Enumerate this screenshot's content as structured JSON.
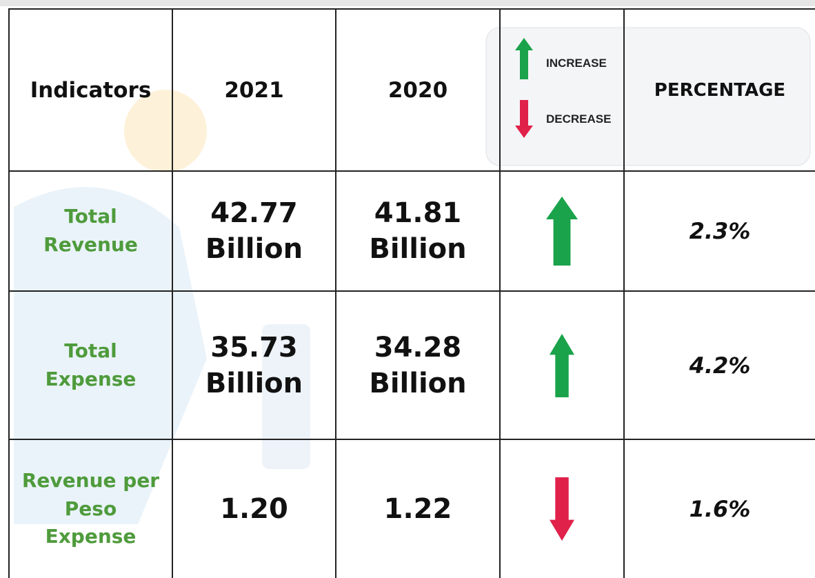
{
  "header": {
    "indicators": "Indicators",
    "year_a": "2021",
    "year_b": "2020",
    "legend_increase": "INCREASE",
    "legend_decrease": "DECREASE",
    "percentage": "PERCENTAGE"
  },
  "table": {
    "rows": [
      {
        "indicator": "Total Revenue",
        "year_a": "42.77 Billion",
        "year_b": "41.81 Billion",
        "direction": "up",
        "percentage": "2.3%"
      },
      {
        "indicator": "Total Expense",
        "year_a": "35.73 Billion",
        "year_b": "34.28 Billion",
        "direction": "up",
        "percentage": "4.2%"
      },
      {
        "indicator": "Revenue per Peso Expense",
        "year_a": "1.20",
        "year_b": "1.22",
        "direction": "down",
        "percentage": "1.6%"
      }
    ]
  }
}
